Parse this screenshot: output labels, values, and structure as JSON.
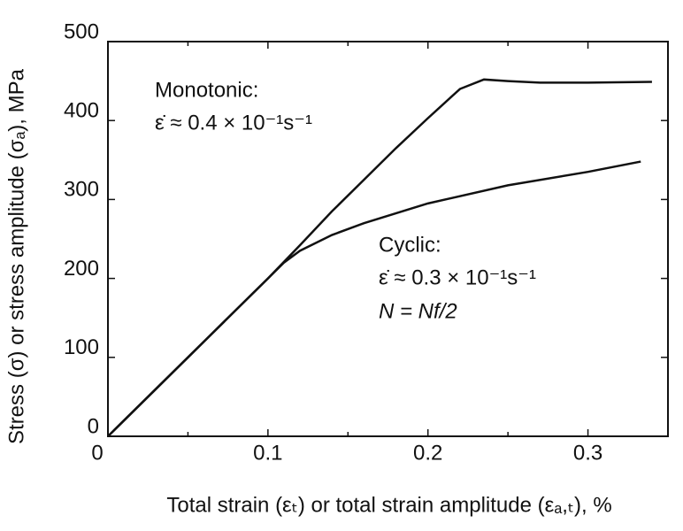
{
  "chart_data": {
    "type": "line",
    "x_label": "Total strain (εₜ) or total strain amplitude (εₐ,ₜ), %",
    "y_label": "Stress (σ) or stress amplitude (σₐ), MPa",
    "xlim": [
      0,
      0.35
    ],
    "xticks": [
      0,
      0.1,
      0.2,
      0.3
    ],
    "xminorticks": [
      0.05,
      0.15,
      0.25
    ],
    "ylim": [
      0,
      500
    ],
    "yticks": [
      0,
      100,
      200,
      300,
      400,
      500
    ],
    "series": [
      {
        "name": "Monotonic",
        "color": "#111111",
        "x": [
          0,
          0.05,
          0.1,
          0.12,
          0.14,
          0.16,
          0.18,
          0.2,
          0.22,
          0.235,
          0.25,
          0.27,
          0.3,
          0.34
        ],
        "values": [
          0,
          100,
          200,
          242,
          285,
          325,
          365,
          403,
          440,
          452,
          450,
          448,
          448,
          449
        ]
      },
      {
        "name": "Cyclic",
        "color": "#111111",
        "x": [
          0,
          0.05,
          0.1,
          0.11,
          0.12,
          0.14,
          0.16,
          0.2,
          0.25,
          0.3,
          0.333
        ],
        "values": [
          0,
          100,
          200,
          220,
          235,
          255,
          270,
          295,
          318,
          335,
          348
        ]
      }
    ],
    "annotations": [
      "Monotonic:",
      "ε̇ ≈ 0.4 × 10⁻¹s⁻¹",
      "Cyclic:",
      "ε̇ ≈ 0.3 × 10⁻¹s⁻¹",
      "N = Nf/2"
    ]
  }
}
